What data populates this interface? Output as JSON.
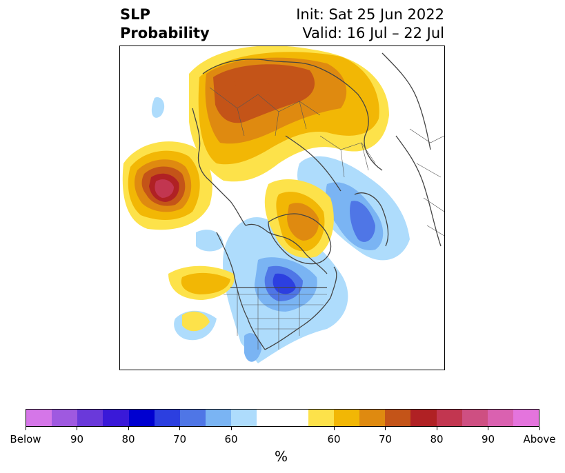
{
  "header": {
    "title_line1": "SLP",
    "title_line2": "Probability",
    "init_text": "Init: Sat 25 Jun 2022",
    "valid_text": "Valid: 16 Jul – 22 Jul"
  },
  "map": {
    "projection": "polar-stereographic",
    "region": "Northern Hemisphere (North America / Arctic / Eurasia)",
    "above_normal_regions": [
      "Alaska / northeast Pacific",
      "Siberia / Arctic Ocean",
      "Greenland",
      "northeast Pacific offshore"
    ],
    "below_normal_regions": [
      "central Canada / Hudson Bay / Great Lakes",
      "Scandinavia / northern Europe",
      "US Southwest"
    ]
  },
  "colorbar": {
    "unit_label": "%",
    "colors": [
      "#d576e8",
      "#9f59e0",
      "#6a39da",
      "#3a19d8",
      "#0000d0",
      "#2c3fe0",
      "#4f76e6",
      "#7ab4f3",
      "#aedcfc",
      "#ffffff",
      "#ffffff",
      "#fde24a",
      "#f2b705",
      "#df8a10",
      "#c45418",
      "#b02124",
      "#c23650",
      "#ce4f82",
      "#da61b0",
      "#e474dd"
    ],
    "tick_labels": [
      "Below",
      "90",
      "80",
      "70",
      "60",
      "60",
      "70",
      "80",
      "90",
      "Above"
    ]
  }
}
